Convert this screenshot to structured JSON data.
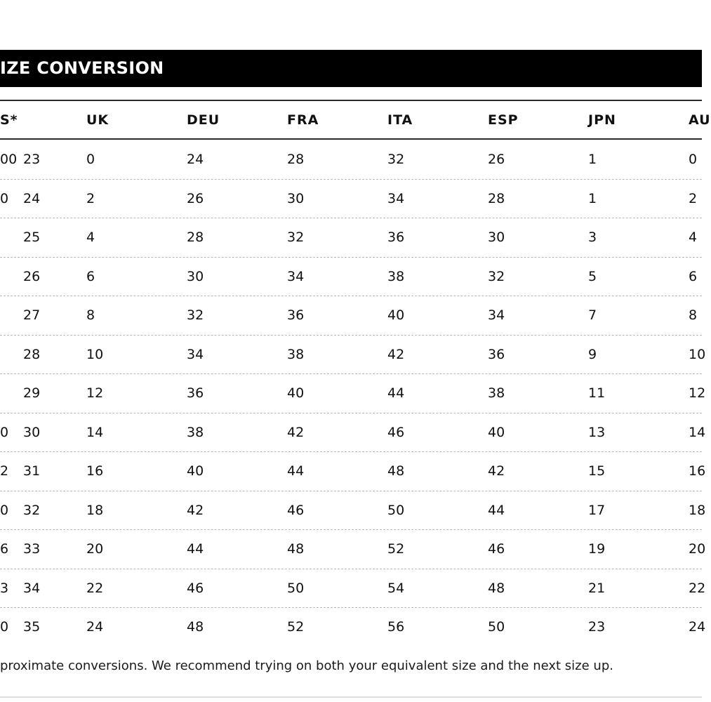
{
  "title": "IZE CONVERSION",
  "columns": [
    "S*",
    "",
    "UK",
    "DEU",
    "FRA",
    "ITA",
    "ESP",
    "JPN",
    "AU"
  ],
  "rows": [
    [
      "00",
      "23",
      "0",
      "24",
      "28",
      "32",
      "26",
      "1",
      "0"
    ],
    [
      "0",
      "24",
      "2",
      "26",
      "30",
      "34",
      "28",
      "1",
      "2"
    ],
    [
      "",
      "25",
      "4",
      "28",
      "32",
      "36",
      "30",
      "3",
      "4"
    ],
    [
      "",
      "26",
      "6",
      "30",
      "34",
      "38",
      "32",
      "5",
      "6"
    ],
    [
      "",
      "27",
      "8",
      "32",
      "36",
      "40",
      "34",
      "7",
      "8"
    ],
    [
      "",
      "28",
      "10",
      "34",
      "38",
      "42",
      "36",
      "9",
      "10"
    ],
    [
      "",
      "29",
      "12",
      "36",
      "40",
      "44",
      "38",
      "11",
      "12"
    ],
    [
      "0",
      "30",
      "14",
      "38",
      "42",
      "46",
      "40",
      "13",
      "14"
    ],
    [
      "2",
      "31",
      "16",
      "40",
      "44",
      "48",
      "42",
      "15",
      "16"
    ],
    [
      "0",
      "32",
      "18",
      "42",
      "46",
      "50",
      "44",
      "17",
      "18"
    ],
    [
      "6",
      "33",
      "20",
      "44",
      "48",
      "52",
      "46",
      "19",
      "20"
    ],
    [
      "3",
      "34",
      "22",
      "46",
      "50",
      "54",
      "48",
      "21",
      "22"
    ],
    [
      "0",
      "35",
      "24",
      "48",
      "52",
      "56",
      "50",
      "23",
      "24"
    ]
  ],
  "footnote": "proximate conversions. We recommend trying on both your equivalent size and the next size up."
}
